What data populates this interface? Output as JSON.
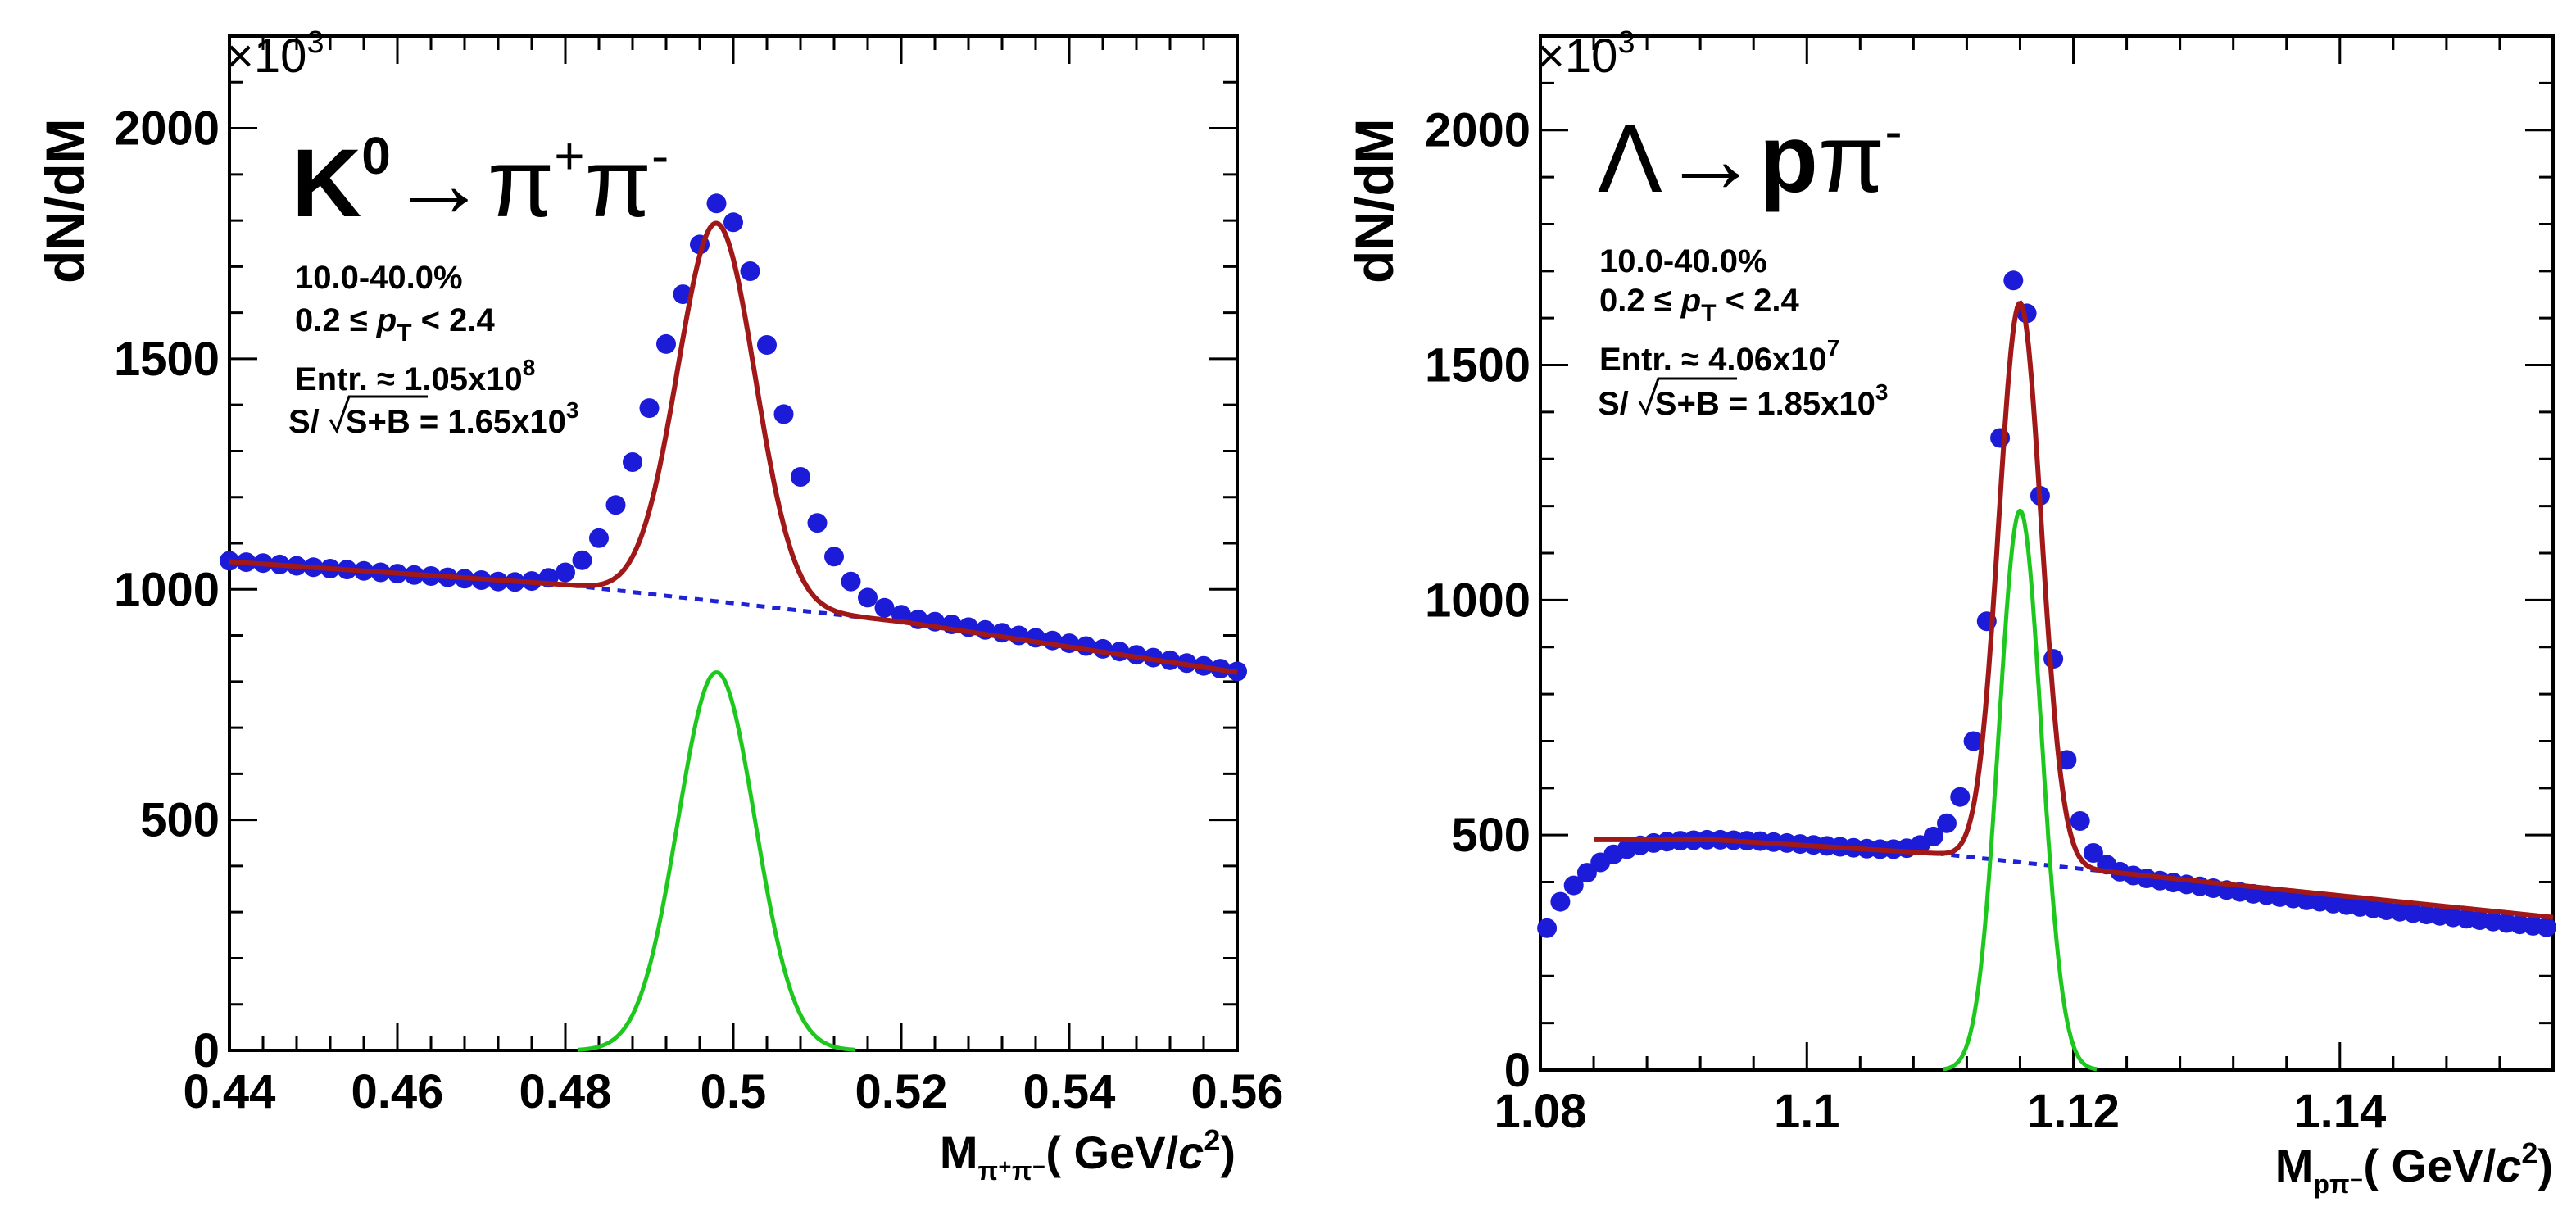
{
  "chart_data": [
    {
      "type": "scatter",
      "panel": "left",
      "title_parts": {
        "base": "K",
        "sup1": "0",
        "arrow": "→",
        "p1": "π",
        "sup2": "+",
        "p2": "π",
        "sup3": "-"
      },
      "ylabel": "dN/dM",
      "y_multiplier_base": "×10",
      "y_multiplier_exp": "3",
      "xlabel_parts": {
        "m": "M",
        "sub": "π⁺π⁻",
        "rest": "( GeV/",
        "c": "c",
        "sup": "2",
        "close": ")"
      },
      "xlim": [
        0.44,
        0.56
      ],
      "ylim": [
        0,
        2200
      ],
      "x_ticks": [
        "0.44",
        "0.46",
        "0.48",
        "0.5",
        "0.52",
        "0.54",
        "0.56"
      ],
      "y_ticks": [
        "0",
        "500",
        "1000",
        "1500",
        "2000"
      ],
      "info": {
        "centrality": "10.0-40.0%",
        "pt_prefix": "0.2 ≤ ",
        "pt_var": "p",
        "pt_sub": "T",
        "pt_suffix": " < 2.4",
        "entries_prefix": "Entr. ≈ 1.05x10",
        "entries_exp": "8",
        "sig_s": "S/",
        "sig_sb": "S+B",
        "sig_value": " = 1.65x10",
        "sig_exp": "3"
      },
      "peak": {
        "mean": 0.498,
        "sigma": 0.0046,
        "amplitude": 820
      },
      "background": {
        "x": [
          0.44,
          0.48,
          0.52,
          0.56
        ],
        "y": [
          1060,
          1010,
          930,
          820
        ]
      },
      "points": {
        "x": [
          0.44,
          0.442,
          0.444,
          0.446,
          0.448,
          0.45,
          0.452,
          0.454,
          0.456,
          0.458,
          0.46,
          0.462,
          0.464,
          0.466,
          0.468,
          0.47,
          0.472,
          0.474,
          0.476,
          0.478,
          0.48,
          0.482,
          0.484,
          0.486,
          0.488,
          0.49,
          0.492,
          0.494,
          0.496,
          0.498,
          0.5,
          0.502,
          0.504,
          0.506,
          0.508,
          0.51,
          0.512,
          0.514,
          0.516,
          0.518,
          0.52,
          0.522,
          0.524,
          0.526,
          0.528,
          0.53,
          0.532,
          0.534,
          0.536,
          0.538,
          0.54,
          0.542,
          0.544,
          0.546,
          0.548,
          0.55,
          0.552,
          0.554,
          0.556,
          0.558,
          0.56
        ],
        "y": [
          1062,
          1059,
          1057,
          1054,
          1051,
          1048,
          1045,
          1043,
          1040,
          1037,
          1034,
          1031,
          1029,
          1026,
          1023,
          1020,
          1017,
          1016,
          1018,
          1025,
          1037,
          1063,
          1111,
          1183,
          1276,
          1393,
          1532,
          1640,
          1748,
          1837,
          1796,
          1690,
          1530,
          1380,
          1244,
          1144,
          1071,
          1017,
          982,
          960,
          945,
          935,
          930,
          924,
          918,
          912,
          906,
          900,
          895,
          889,
          883,
          877,
          871,
          865,
          858,
          852,
          846,
          840,
          834,
          828,
          822
        ]
      }
    },
    {
      "type": "scatter",
      "panel": "right",
      "title_parts": {
        "base": "Λ",
        "arrow": "→",
        "p": "p",
        "pi": "π",
        "sup": "-"
      },
      "ylabel": "dN/dM",
      "y_multiplier_base": "×10",
      "y_multiplier_exp": "3",
      "xlabel_parts": {
        "m": "M",
        "sub": "pπ⁻",
        "rest": "( GeV/",
        "c": "c",
        "sup": "2",
        "close": ")"
      },
      "xlim": [
        1.08,
        1.156
      ],
      "ylim": [
        0,
        2200
      ],
      "x_ticks": [
        "1.08",
        "1.1",
        "1.12",
        "1.14"
      ],
      "y_ticks": [
        "0",
        "500",
        "1000",
        "1500",
        "2000"
      ],
      "info": {
        "centrality": "10.0-40.0%",
        "pt_prefix": "0.2 ≤ ",
        "pt_var": "p",
        "pt_sub": "T",
        "pt_suffix": " < 2.4",
        "entries_prefix": "Entr. ≈ 4.06x10",
        "entries_exp": "7",
        "sig_s": "S/",
        "sig_sb": "S+B",
        "sig_value": " = 1.85x10",
        "sig_exp": "3"
      },
      "peak": {
        "mean": 1.116,
        "sigma": 0.0016,
        "amplitude": 1190
      },
      "background": {
        "x": [
          1.084,
          1.093,
          1.11,
          1.13,
          1.156
        ],
        "y": [
          490,
          490,
          460,
          400,
          325
        ]
      },
      "points": {
        "x": [
          1.0805,
          1.0815,
          1.0825,
          1.0835,
          1.0845,
          1.0855,
          1.0865,
          1.0875,
          1.0885,
          1.0895,
          1.0905,
          1.0915,
          1.0925,
          1.0935,
          1.0945,
          1.0955,
          1.0965,
          1.0975,
          1.0985,
          1.0995,
          1.1005,
          1.1015,
          1.1025,
          1.1035,
          1.1045,
          1.1055,
          1.1065,
          1.1075,
          1.1085,
          1.1095,
          1.1105,
          1.1115,
          1.1125,
          1.1135,
          1.1145,
          1.1155,
          1.1165,
          1.1175,
          1.1185,
          1.1195,
          1.1205,
          1.1215,
          1.1225,
          1.1235,
          1.1245,
          1.1255,
          1.1265,
          1.1275,
          1.1285,
          1.1295,
          1.1305,
          1.1315,
          1.1325,
          1.1335,
          1.1345,
          1.1355,
          1.1365,
          1.1375,
          1.1385,
          1.1395,
          1.1405,
          1.1415,
          1.1425,
          1.1435,
          1.1445,
          1.1455,
          1.1465,
          1.1475,
          1.1485,
          1.1495,
          1.1505,
          1.1515,
          1.1525,
          1.1535,
          1.1545,
          1.1555
        ],
        "y": [
          302,
          358,
          393,
          420,
          442,
          459,
          470,
          478,
          483,
          486,
          488,
          489,
          490,
          490,
          489,
          488,
          487,
          485,
          483,
          481,
          479,
          477,
          475,
          473,
          471,
          470,
          470,
          472,
          479,
          497,
          525,
          581,
          700,
          955,
          1345,
          1680,
          1610,
          1222,
          875,
          660,
          530,
          462,
          437,
          422,
          414,
          408,
          403,
          399,
          395,
          391,
          387,
          383,
          379,
          375,
          372,
          368,
          365,
          361,
          358,
          354,
          351,
          347,
          344,
          340,
          337,
          334,
          331,
          328,
          325,
          322,
          319,
          316,
          313,
          310,
          307,
          304
        ]
      }
    }
  ]
}
